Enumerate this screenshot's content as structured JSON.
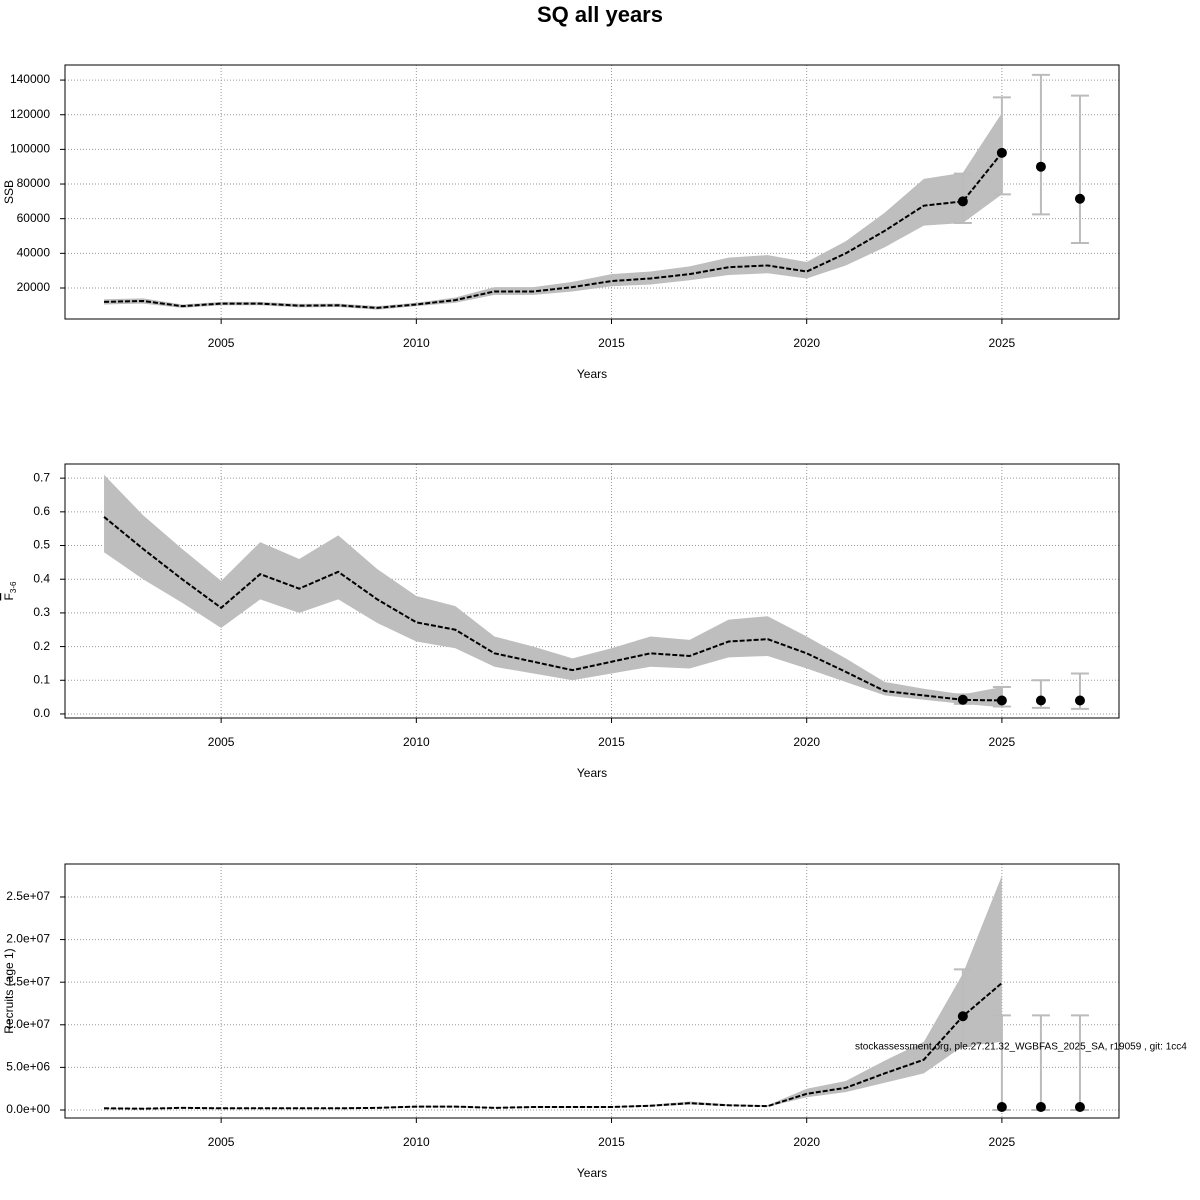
{
  "title": "SQ all years",
  "footnote": "stockassessment.org, ple.27.21.32_WGBFAS_2025_SA, r19059 , git: 1cc4",
  "chart_data": [
    {
      "type": "line",
      "xlabel": "Years",
      "ylabel": "SSB",
      "x": [
        2002,
        2003,
        2004,
        2005,
        2006,
        2007,
        2008,
        2009,
        2010,
        2011,
        2012,
        2013,
        2014,
        2015,
        2016,
        2017,
        2018,
        2019,
        2020,
        2021,
        2022,
        2023,
        2024,
        2025
      ],
      "values": [
        12000,
        12500,
        9500,
        11000,
        11000,
        9800,
        10000,
        8500,
        10500,
        13000,
        18000,
        18000,
        20500,
        24000,
        25500,
        28000,
        32000,
        33000,
        29500,
        40000,
        53000,
        67500,
        70000,
        98000
      ],
      "lower": [
        10500,
        11000,
        8500,
        10000,
        10000,
        8800,
        9000,
        7500,
        9500,
        11500,
        16000,
        16000,
        18000,
        21000,
        22000,
        24500,
        27500,
        28500,
        25500,
        33000,
        43500,
        56000,
        57500,
        74000
      ],
      "upper": [
        13500,
        14000,
        10500,
        12000,
        12000,
        10800,
        11000,
        9500,
        11500,
        14500,
        20500,
        20500,
        23500,
        28000,
        29500,
        32500,
        37500,
        39000,
        35000,
        47000,
        63500,
        83000,
        86500,
        121000
      ],
      "points": {
        "x": [
          2024,
          2025,
          2026,
          2027
        ],
        "values": [
          70000,
          98000,
          90000,
          71500
        ],
        "lower": [
          57500,
          74000,
          62500,
          46000
        ],
        "upper": [
          86000,
          130000,
          143000,
          131000
        ]
      },
      "xlim": [
        2001,
        2028
      ],
      "xticks": [
        2005,
        2010,
        2015,
        2020,
        2025
      ],
      "ylim": [
        2100,
        148700
      ],
      "yticks": [
        20000,
        40000,
        60000,
        80000,
        100000,
        120000,
        140000
      ],
      "grid": true,
      "color": "#000000",
      "band_color": "#bebebe",
      "errorbar_color": "#bbbbbb"
    },
    {
      "type": "line",
      "xlabel": "Years",
      "ylabel": "F",
      "ylabel_subscript": "3-6",
      "x": [
        2002,
        2003,
        2004,
        2005,
        2006,
        2007,
        2008,
        2009,
        2010,
        2011,
        2012,
        2013,
        2014,
        2015,
        2016,
        2017,
        2018,
        2019,
        2020,
        2021,
        2022,
        2023,
        2024,
        2025
      ],
      "values": [
        0.585,
        0.49,
        0.4,
        0.315,
        0.415,
        0.372,
        0.422,
        0.34,
        0.272,
        0.25,
        0.18,
        0.155,
        0.13,
        0.155,
        0.18,
        0.172,
        0.215,
        0.222,
        0.18,
        0.125,
        0.068,
        0.055,
        0.042,
        0.04
      ],
      "lower": [
        0.48,
        0.4,
        0.33,
        0.255,
        0.34,
        0.3,
        0.34,
        0.27,
        0.215,
        0.195,
        0.14,
        0.12,
        0.1,
        0.12,
        0.14,
        0.135,
        0.168,
        0.172,
        0.135,
        0.095,
        0.055,
        0.042,
        0.03,
        0.02
      ],
      "upper": [
        0.71,
        0.59,
        0.49,
        0.395,
        0.51,
        0.46,
        0.53,
        0.43,
        0.35,
        0.32,
        0.23,
        0.2,
        0.165,
        0.195,
        0.23,
        0.22,
        0.28,
        0.29,
        0.23,
        0.165,
        0.095,
        0.075,
        0.058,
        0.08
      ],
      "points": {
        "x": [
          2024,
          2025,
          2026,
          2027
        ],
        "values": [
          0.042,
          0.04,
          0.04,
          0.04
        ],
        "lower": [
          0.03,
          0.022,
          0.018,
          0.015
        ],
        "upper": [
          0.058,
          0.08,
          0.1,
          0.12
        ]
      },
      "xlim": [
        2001,
        2028
      ],
      "xticks": [
        2005,
        2010,
        2015,
        2020,
        2025
      ],
      "ylim": [
        -0.012,
        0.742
      ],
      "yticks": [
        {
          "value": 0,
          "label": "0.0"
        },
        0.1,
        0.2,
        0.3,
        0.4,
        0.5,
        0.6,
        0.7
      ],
      "grid": true,
      "color": "#000000",
      "band_color": "#bebebe",
      "errorbar_color": "#bbbbbb"
    },
    {
      "type": "line",
      "xlabel": "Years",
      "ylabel": "Recruits (age 1)",
      "x": [
        2002,
        2003,
        2004,
        2005,
        2006,
        2007,
        2008,
        2009,
        2010,
        2011,
        2012,
        2013,
        2014,
        2015,
        2016,
        2017,
        2018,
        2019,
        2020,
        2021,
        2022,
        2023,
        2024,
        2025
      ],
      "values": [
        200000,
        150000,
        250000,
        200000,
        200000,
        200000,
        200000,
        250000,
        400000,
        400000,
        250000,
        350000,
        350000,
        350000,
        500000,
        800000,
        550000,
        450000,
        1900000,
        2600000,
        4300000,
        5900000,
        11000000,
        14900000
      ],
      "lower": [
        150000,
        100000,
        200000,
        150000,
        150000,
        150000,
        150000,
        200000,
        300000,
        300000,
        200000,
        280000,
        280000,
        280000,
        400000,
        650000,
        450000,
        380000,
        1500000,
        2100000,
        3200000,
        4300000,
        7500000,
        8000000
      ],
      "upper": [
        250000,
        200000,
        300000,
        250000,
        250000,
        250000,
        250000,
        300000,
        500000,
        500000,
        300000,
        420000,
        420000,
        420000,
        620000,
        1000000,
        670000,
        550000,
        2500000,
        3400000,
        5800000,
        8000000,
        16000000,
        27500000
      ],
      "points": {
        "x": [
          2024,
          2025,
          2026,
          2027
        ],
        "values": [
          11000000,
          350000,
          350000,
          350000
        ],
        "lower": [
          7500000,
          0,
          0,
          0
        ],
        "upper": [
          16500000,
          11100000,
          11100000,
          11100000
        ]
      },
      "xlim": [
        2001,
        2028
      ],
      "xticks": [
        2005,
        2010,
        2015,
        2020,
        2025
      ],
      "ylim": [
        -940000,
        28870000
      ],
      "yticks": [
        {
          "value": 0,
          "label": "0.0e+00"
        },
        {
          "value": 5000000,
          "label": "5.0e+06"
        },
        {
          "value": 10000000,
          "label": "1.0e+07"
        },
        {
          "value": 15000000,
          "label": "1.5e+07"
        },
        {
          "value": 20000000,
          "label": "2.0e+07"
        },
        {
          "value": 25000000,
          "label": "2.5e+07"
        }
      ],
      "grid": true,
      "color": "#000000",
      "band_color": "#bebebe",
      "errorbar_color": "#bbbbbb"
    }
  ]
}
